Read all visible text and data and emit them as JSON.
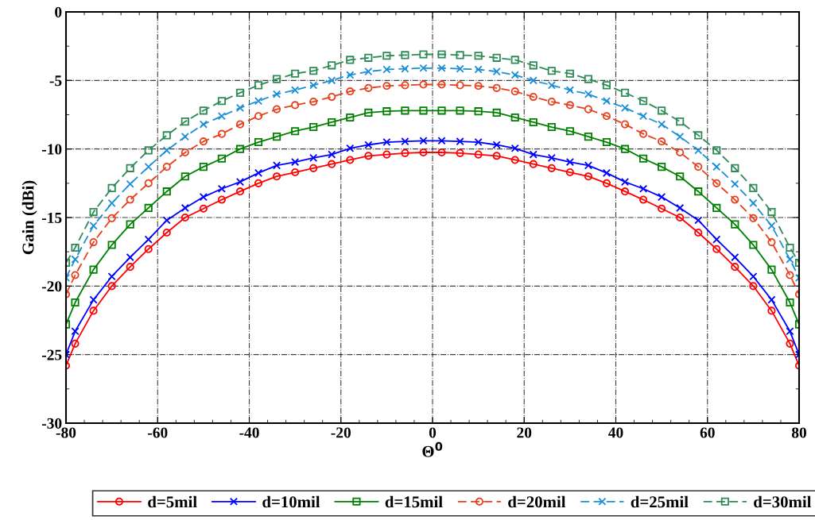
{
  "chart_data": {
    "type": "line",
    "xlabel": "Θ$^{0}$",
    "ylabel": "Gain (dBi)",
    "x": [
      -80,
      -78,
      -74,
      -70,
      -66,
      -62,
      -58,
      -54,
      -50,
      -46,
      -42,
      -38,
      -34,
      -30,
      -26,
      -22,
      -18,
      -14,
      -10,
      -6,
      -2,
      2,
      6,
      10,
      14,
      18,
      22,
      26,
      30,
      34,
      38,
      42,
      46,
      50,
      54,
      58,
      62,
      66,
      70,
      74,
      78,
      80
    ],
    "series": [
      {
        "name": "d=5mil",
        "color": "#ff0000",
        "marker": "circle",
        "line_style": "solid",
        "values": [
          -25.8,
          -24.2,
          -21.8,
          -20.0,
          -18.6,
          -17.3,
          -16.1,
          -15.0,
          -14.35,
          -13.7,
          -13.1,
          -12.5,
          -12.0,
          -11.7,
          -11.4,
          -11.1,
          -10.8,
          -10.5,
          -10.4,
          -10.3,
          -10.25,
          -10.25,
          -10.3,
          -10.4,
          -10.5,
          -10.8,
          -11.1,
          -11.4,
          -11.7,
          -12.0,
          -12.5,
          -13.1,
          -13.7,
          -14.35,
          -15.0,
          -16.1,
          -17.3,
          -18.6,
          -20.0,
          -21.8,
          -24.2,
          -25.8
        ]
      },
      {
        "name": "d=10mil",
        "color": "#0000ff",
        "marker": "cross",
        "line_style": "solid",
        "values": [
          -25.0,
          -23.3,
          -21.0,
          -19.3,
          -17.9,
          -16.6,
          -15.2,
          -14.3,
          -13.5,
          -12.9,
          -12.4,
          -11.75,
          -11.2,
          -10.95,
          -10.65,
          -10.4,
          -9.95,
          -9.7,
          -9.5,
          -9.45,
          -9.4,
          -9.4,
          -9.45,
          -9.5,
          -9.7,
          -9.95,
          -10.4,
          -10.65,
          -10.95,
          -11.2,
          -11.75,
          -12.4,
          -12.9,
          -13.5,
          -14.3,
          -15.2,
          -16.6,
          -17.9,
          -19.3,
          -21.0,
          -23.3,
          -25.0
        ]
      },
      {
        "name": "d=15mil",
        "color": "#008000",
        "marker": "square",
        "line_style": "solid",
        "values": [
          -22.8,
          -21.2,
          -18.8,
          -17.0,
          -15.5,
          -14.3,
          -13.1,
          -12.0,
          -11.3,
          -10.7,
          -10.0,
          -9.5,
          -9.1,
          -8.7,
          -8.4,
          -8.05,
          -7.7,
          -7.35,
          -7.25,
          -7.2,
          -7.2,
          -7.2,
          -7.2,
          -7.25,
          -7.35,
          -7.7,
          -8.05,
          -8.4,
          -8.7,
          -9.1,
          -9.5,
          -10.0,
          -10.7,
          -11.3,
          -12.0,
          -13.1,
          -14.3,
          -15.5,
          -17.0,
          -18.8,
          -21.2,
          -22.8
        ]
      },
      {
        "name": "d=20mil",
        "color": "#e8401c",
        "marker": "circle",
        "line_style": "dashed",
        "values": [
          -20.6,
          -19.2,
          -16.8,
          -15.05,
          -13.7,
          -12.5,
          -11.3,
          -10.25,
          -9.45,
          -8.9,
          -8.2,
          -7.6,
          -7.1,
          -6.8,
          -6.55,
          -6.2,
          -5.8,
          -5.55,
          -5.4,
          -5.35,
          -5.3,
          -5.3,
          -5.35,
          -5.4,
          -5.55,
          -5.8,
          -6.2,
          -6.55,
          -6.8,
          -7.1,
          -7.6,
          -8.2,
          -8.9,
          -9.45,
          -10.25,
          -11.3,
          -12.5,
          -13.7,
          -15.05,
          -16.8,
          -19.2,
          -20.6
        ]
      },
      {
        "name": "d=25mil",
        "color": "#1a8fd6",
        "marker": "cross",
        "line_style": "dashed",
        "values": [
          -19.4,
          -18.05,
          -15.6,
          -13.95,
          -12.55,
          -11.3,
          -10.1,
          -9.1,
          -8.2,
          -7.6,
          -7.0,
          -6.5,
          -6.0,
          -5.7,
          -5.35,
          -5.0,
          -4.6,
          -4.35,
          -4.2,
          -4.15,
          -4.1,
          -4.1,
          -4.15,
          -4.2,
          -4.35,
          -4.6,
          -5.0,
          -5.35,
          -5.7,
          -6.0,
          -6.5,
          -7.0,
          -7.6,
          -8.2,
          -9.1,
          -10.1,
          -11.3,
          -12.55,
          -13.95,
          -15.6,
          -18.05,
          -19.4
        ]
      },
      {
        "name": "d=30mil",
        "color": "#2e8b57",
        "marker": "square",
        "line_style": "dashed",
        "values": [
          -18.3,
          -17.2,
          -14.6,
          -12.85,
          -11.4,
          -10.1,
          -9.0,
          -8.0,
          -7.2,
          -6.5,
          -5.9,
          -5.35,
          -4.9,
          -4.5,
          -4.3,
          -3.9,
          -3.5,
          -3.35,
          -3.2,
          -3.15,
          -3.1,
          -3.1,
          -3.15,
          -3.2,
          -3.35,
          -3.5,
          -3.9,
          -4.3,
          -4.5,
          -4.9,
          -5.35,
          -5.9,
          -6.5,
          -7.2,
          -8.0,
          -9.0,
          -10.1,
          -11.4,
          -12.85,
          -14.6,
          -17.2,
          -18.3
        ]
      }
    ],
    "xlim": [
      -80,
      80
    ],
    "xticks": [
      -80,
      -60,
      -40,
      -20,
      0,
      20,
      40,
      60,
      80
    ],
    "ylim": [
      -30,
      0
    ],
    "yticks": [
      -30,
      -25,
      -20,
      -15,
      -10,
      -5,
      0
    ],
    "grid": true,
    "legend": "bottom"
  }
}
